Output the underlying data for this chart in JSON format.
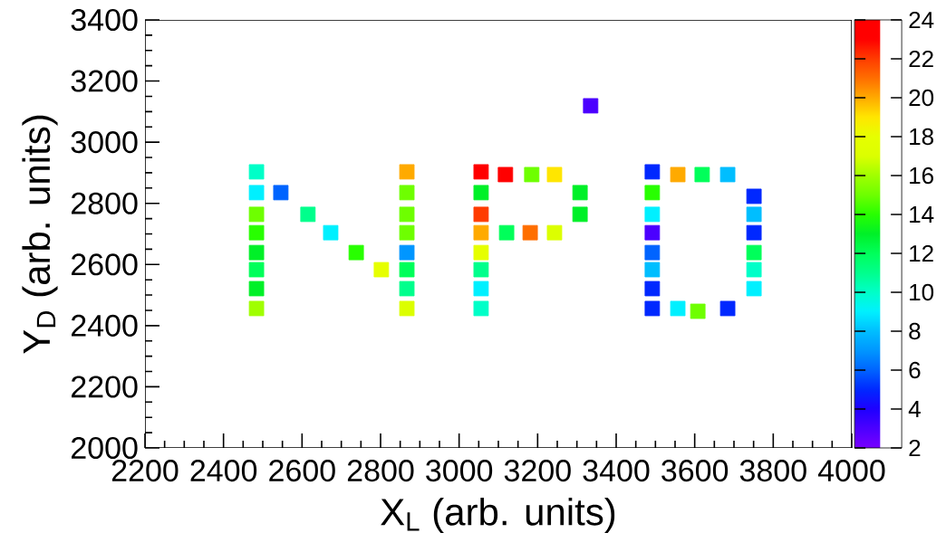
{
  "chart_data": {
    "type": "scatter",
    "xlabel": "X$_{L}$ (arb. units)",
    "ylabel": "Y$_{D}$ (arb. units)",
    "x": [
      2484,
      2484,
      2484,
      2484,
      2484,
      2484,
      2484,
      2484,
      2546,
      2615,
      2673,
      2738,
      2802,
      2867,
      2867,
      2867,
      2867,
      2867,
      2867,
      2867,
      2867,
      3056,
      3056,
      3056,
      3056,
      3056,
      3056,
      3056,
      3056,
      3118,
      3185,
      3243,
      3308,
      3308,
      3121,
      3181,
      3243,
      3335,
      3492,
      3492,
      3492,
      3492,
      3492,
      3492,
      3492,
      3492,
      3557,
      3619,
      3684,
      3557,
      3608,
      3684,
      3751,
      3751,
      3751,
      3751,
      3751,
      3751
    ],
    "values": [
      2903,
      2835,
      2764,
      2704,
      2639,
      2583,
      2521,
      2456,
      2835,
      2764,
      2704,
      2639,
      2583,
      2903,
      2835,
      2764,
      2704,
      2639,
      2583,
      2521,
      2456,
      2903,
      2835,
      2764,
      2704,
      2639,
      2583,
      2521,
      2456,
      2894,
      2894,
      2894,
      2835,
      2764,
      2704,
      2704,
      2704,
      3119,
      2903,
      2835,
      2764,
      2704,
      2639,
      2583,
      2521,
      2456,
      2894,
      2894,
      2894,
      2456,
      2447,
      2456,
      2823,
      2764,
      2704,
      2639,
      2583,
      2521
    ],
    "cvalues": [
      10,
      9,
      15,
      14,
      13,
      12,
      13,
      16,
      6,
      11,
      9,
      14,
      18,
      20,
      15,
      15,
      15,
      7,
      12,
      11,
      17,
      23,
      13,
      22,
      20,
      18,
      11,
      9,
      10,
      23,
      15,
      19,
      13,
      13,
      12,
      21,
      17,
      3,
      5,
      14,
      9,
      3,
      6,
      8,
      5,
      5,
      20,
      12,
      8,
      9,
      15,
      5,
      5,
      8,
      5,
      12,
      10,
      9
    ],
    "marker": "square",
    "xlim": [
      2200,
      4000
    ],
    "ylim": [
      2000,
      3400
    ],
    "xticks": [
      2200,
      2400,
      2600,
      2800,
      3000,
      3200,
      3400,
      3600,
      3800,
      4000
    ],
    "yticks": [
      2000,
      2200,
      2400,
      2600,
      2800,
      3000,
      3200,
      3400
    ],
    "clim": [
      2,
      24
    ],
    "cticks": [
      2,
      4,
      6,
      8,
      10,
      12,
      14,
      16,
      18,
      20,
      22,
      24
    ]
  }
}
